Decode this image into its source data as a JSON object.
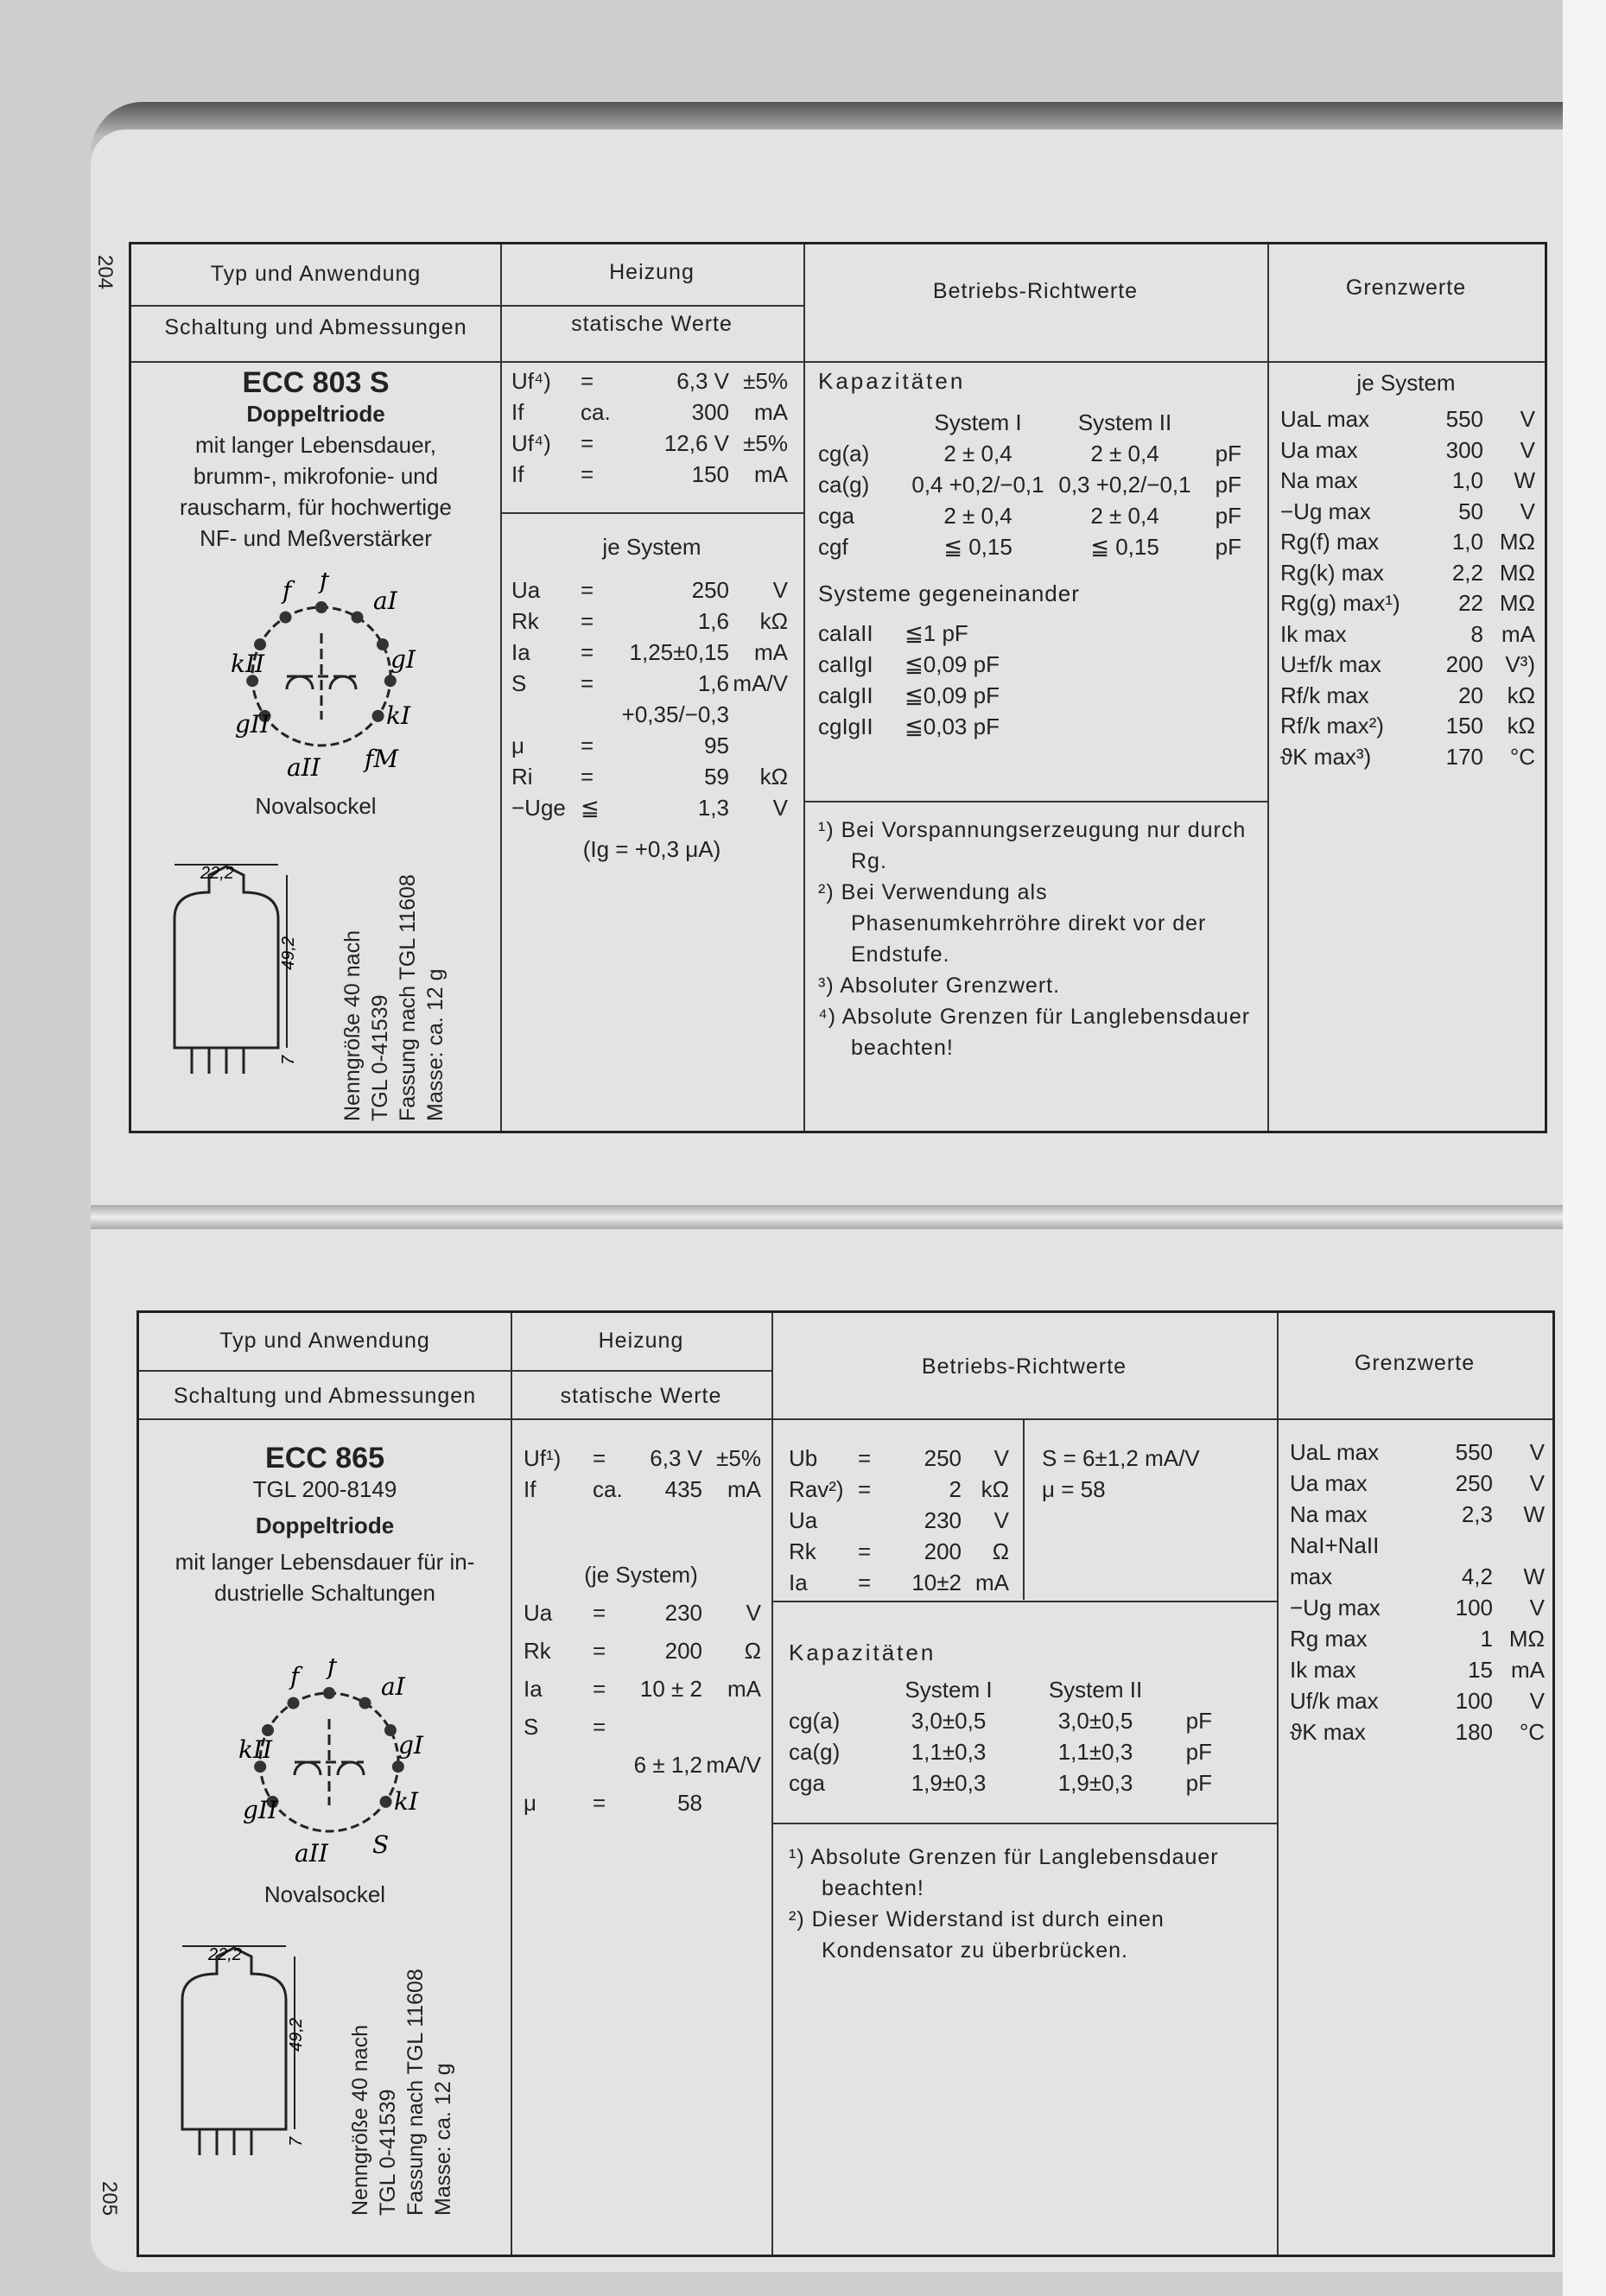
{
  "pages": {
    "left": "204",
    "right": "205"
  },
  "headers": {
    "typ": "Typ und Anwendung",
    "schaltung": "Schaltung und Abmessungen",
    "heizung": "Heizung",
    "statische": "statische Werte",
    "betriebs": "Betriebs-Richtwerte",
    "grenz": "Grenzwerte"
  },
  "ecc803": {
    "name": "ECC 803 S",
    "type": "Doppeltriode",
    "desc": [
      "mit langer Lebensdauer,",
      "brumm-, mikrofonie- und",
      "rauscharm, für hochwertige",
      "NF- und Meßverstärker"
    ],
    "socket": "Novalsockel",
    "dim_d": "22,2",
    "dim_h": "49,2",
    "dim_p": "7",
    "specs": [
      "Nenngröße 40 nach",
      "TGL 0-41539",
      "Fassung nach TGL 11608",
      "Masse: ca. 12 g"
    ],
    "pins": [
      "f",
      "f",
      "aI",
      "gI",
      "kI",
      "fM",
      "aII",
      "gII",
      "kII"
    ],
    "heater": [
      [
        "Uf⁴)",
        "=",
        "6,3 V",
        "±5%"
      ],
      [
        "If",
        "ca.",
        "300",
        "mA"
      ],
      [
        "Uf⁴)",
        "=",
        "12,6 V",
        "±5%"
      ],
      [
        "If",
        "=",
        "150",
        "mA"
      ]
    ],
    "je_system": "je System",
    "static": [
      [
        "Ua",
        "=",
        "250",
        "V"
      ],
      [
        "Rk",
        "=",
        "1,6",
        "kΩ"
      ],
      [
        "Ia",
        "=",
        "1,25±0,15",
        "mA"
      ],
      [
        "S",
        "=",
        "1,6 +0,35/−0,3",
        "mA/V"
      ],
      [
        "μ",
        "=",
        "95",
        ""
      ],
      [
        "Ri",
        "=",
        "59",
        "kΩ"
      ],
      [
        "−Uge",
        "≦",
        "1,3",
        "V"
      ]
    ],
    "static_note": "(Ig = +0,3 μA)",
    "kap_title": "Kapazitäten",
    "sys1": "System I",
    "sys2": "System II",
    "kap": [
      [
        "cg(a)",
        "2 ± 0,4",
        "2 ± 0,4",
        "pF"
      ],
      [
        "ca(g)",
        "0,4 +0,2/−0,1",
        "0,3 +0,2/−0,1",
        "pF"
      ],
      [
        "cga",
        "2 ± 0,4",
        "2 ± 0,4",
        "pF"
      ],
      [
        "cgf",
        "≦ 0,15",
        "≦ 0,15",
        "pF"
      ]
    ],
    "gegen_title": "Systeme gegeneinander",
    "gegen": [
      [
        "caIaII",
        "≦1 pF"
      ],
      [
        "caIIgI",
        "≦0,09 pF"
      ],
      [
        "caIgII",
        "≦0,09 pF"
      ],
      [
        "cgIgII",
        "≦0,03 pF"
      ]
    ],
    "footnotes": [
      "¹) Bei Vorspannungserzeugung nur durch Rg.",
      "²) Bei Verwendung als Phasenumkehrröhre direkt vor der Endstufe.",
      "³) Absoluter Grenzwert.",
      "⁴) Absolute Grenzen für Langlebensdauer beachten!"
    ],
    "grenz_title": "je System",
    "grenz": [
      [
        "UaL max",
        "550",
        "V"
      ],
      [
        "Ua max",
        "300",
        "V"
      ],
      [
        "Na max",
        "1,0",
        "W"
      ],
      [
        "−Ug max",
        "50",
        "V"
      ],
      [
        "Rg(f) max",
        "1,0",
        "MΩ"
      ],
      [
        "Rg(k) max",
        "2,2",
        "MΩ"
      ],
      [
        "Rg(g) max¹)",
        "22",
        "MΩ"
      ],
      [
        "Ik max",
        "8",
        "mA"
      ],
      [
        "U±f/k max",
        "200",
        "V³)"
      ],
      [
        "Rf/k max",
        "20",
        "kΩ"
      ],
      [
        "Rf/k max²)",
        "150",
        "kΩ"
      ],
      [
        "ϑK max³)",
        "170",
        "°C"
      ]
    ]
  },
  "ecc865": {
    "name": "ECC 865",
    "tgl": "TGL 200-8149",
    "type": "Doppeltriode",
    "desc": [
      "mit langer Lebensdauer für in-",
      "dustrielle Schaltungen"
    ],
    "socket": "Novalsockel",
    "dim_d": "22,2",
    "dim_h": "49,2",
    "dim_p": "7",
    "specs": [
      "Nenngröße 40 nach",
      "TGL 0-41539",
      "Fassung nach TGL 11608",
      "Masse: ca. 12 g"
    ],
    "pins": [
      "f",
      "f",
      "aI",
      "gI",
      "kI",
      "S",
      "aII",
      "gII",
      "kII"
    ],
    "heater": [
      [
        "Uf¹)",
        "=",
        "6,3 V",
        "±5%"
      ],
      [
        "If",
        "ca.",
        "435",
        "mA"
      ]
    ],
    "je_system": "(je System)",
    "static": [
      [
        "Ua",
        "=",
        "230",
        "V"
      ],
      [
        "Rk",
        "=",
        "200",
        "Ω"
      ],
      [
        "Ia",
        "=",
        "10 ± 2",
        "mA"
      ],
      [
        "S",
        "=",
        "",
        ""
      ],
      [
        "",
        "",
        "6 ± 1,2",
        "mA/V"
      ],
      [
        "μ",
        "=",
        "58",
        ""
      ]
    ],
    "op": [
      [
        "Ub",
        "=",
        "250",
        "V"
      ],
      [
        "Rav²)",
        "=",
        "2",
        "kΩ"
      ],
      [
        "Ua",
        "",
        "230",
        "V"
      ],
      [
        "Rk",
        "=",
        "200",
        "Ω"
      ],
      [
        "Ia",
        "=",
        "10±2",
        "mA"
      ]
    ],
    "op2": [
      "S = 6±1,2  mA/V",
      "μ = 58"
    ],
    "kap_title": "Kapazitäten",
    "sys1": "System I",
    "sys2": "System II",
    "kap": [
      [
        "cg(a)",
        "3,0±0,5",
        "3,0±0,5",
        "pF"
      ],
      [
        "ca(g)",
        "1,1±0,3",
        "1,1±0,3",
        "pF"
      ],
      [
        "cga",
        "1,9±0,3",
        "1,9±0,3",
        "pF"
      ]
    ],
    "footnotes": [
      "¹) Absolute Grenzen für Langlebensdauer beachten!",
      "²) Dieser Widerstand ist durch einen Kondensator zu überbrücken."
    ],
    "grenz": [
      [
        "UaL max",
        "550",
        "V"
      ],
      [
        "Ua max",
        "250",
        "V"
      ],
      [
        "Na max",
        "2,3",
        "W"
      ],
      [
        "NaI+NaII",
        "",
        ""
      ],
      [
        "max",
        "4,2",
        "W"
      ],
      [
        "−Ug max",
        "100",
        "V"
      ],
      [
        "Rg max",
        "1",
        "MΩ"
      ],
      [
        "Ik max",
        "15",
        "mA"
      ],
      [
        "Uf/k max",
        "100",
        "V"
      ],
      [
        "ϑK max",
        "180",
        "°C"
      ]
    ]
  }
}
